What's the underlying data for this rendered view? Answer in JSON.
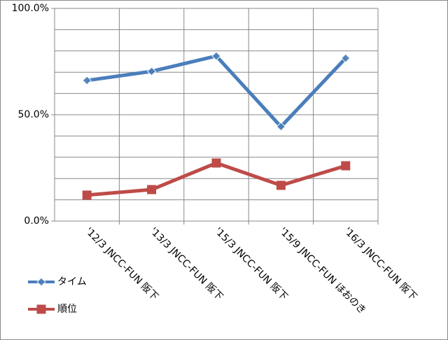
{
  "chart_data": {
    "type": "line",
    "categories": [
      "'12/3 JNCC-FUN 阪下",
      "'13/3 JNCC-FUN 阪下",
      "'15/3 JNCC-FUN 阪下",
      "'15/9 JNCC-FUN ほおのき",
      "'16/3 JNCC-FUN 阪下"
    ],
    "series": [
      {
        "name": "タイム",
        "color": "#4a7ebb",
        "marker": "diamond",
        "values": [
          66.1,
          70.4,
          77.6,
          44.4,
          76.6
        ]
      },
      {
        "name": "順位",
        "color": "#be4b48",
        "marker": "square",
        "values": [
          12.2,
          14.8,
          27.3,
          16.8,
          26.0
        ]
      }
    ],
    "ylim": [
      0,
      100
    ],
    "yticks": [
      {
        "value": 0,
        "label": "0.0%"
      },
      {
        "value": 50,
        "label": "50.0%"
      },
      {
        "value": 100,
        "label": "100.0%"
      }
    ],
    "minor_yticks": [
      10,
      20,
      30,
      40,
      60,
      70,
      80,
      90
    ],
    "grid": true,
    "legend": "left-bottom"
  }
}
